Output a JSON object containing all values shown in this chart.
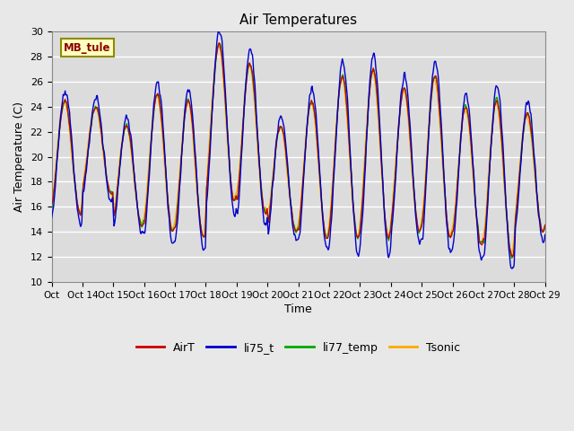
{
  "title": "Air Temperatures",
  "ylabel": "Air Temperature (C)",
  "xlabel": "Time",
  "ylim": [
    10,
    30
  ],
  "label_text": "MB_tule",
  "tick_labels": [
    "Oct 14",
    "Oct 15",
    "Oct 16",
    "Oct 17",
    "Oct 18",
    "Oct 19",
    "Oct 20",
    "Oct 21",
    "Oct 22",
    "Oct 23",
    "Oct 24",
    "Oct 25",
    "Oct 26",
    "Oct 27",
    "Oct 28",
    "Oct 29"
  ],
  "series_names": [
    "AirT",
    "li75_t",
    "li77_temp",
    "Tsonic"
  ],
  "series_colors": [
    "#cc0000",
    "#0000cc",
    "#00aa00",
    "#ffaa00"
  ],
  "bg_color": "#dcdcdc",
  "grid_color": "#ffffff",
  "fig_bg": "#e8e8e8"
}
